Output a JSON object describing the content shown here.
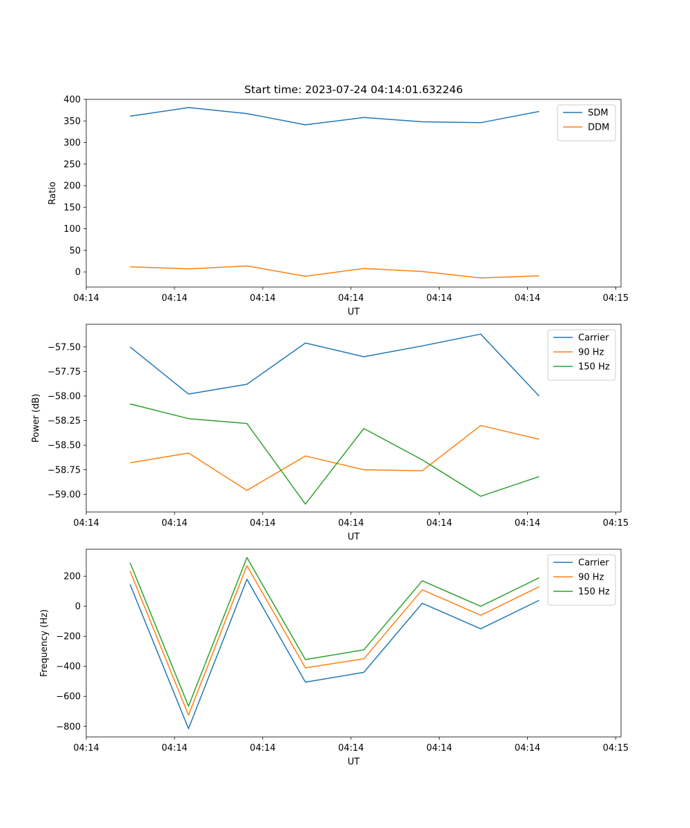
{
  "chart_data": [
    {
      "type": "line",
      "title": "Start time: 2023-07-24 04:14:01.632246",
      "xlabel": "UT",
      "ylabel": "Ratio",
      "x": [
        0,
        1,
        2,
        3,
        4,
        5,
        6,
        7
      ],
      "xlim": [
        -0.75,
        8.4
      ],
      "x_ticks": [
        -0.75,
        0.76,
        2.27,
        3.78,
        5.29,
        6.8,
        8.31
      ],
      "x_tick_labels": [
        "04:14",
        "04:14",
        "04:14",
        "04:14",
        "04:14",
        "04:14",
        "04:15"
      ],
      "ylim": [
        -35,
        400
      ],
      "y_ticks": [
        0,
        50,
        100,
        150,
        200,
        250,
        300,
        350,
        400
      ],
      "y_tick_labels": [
        "0",
        "50",
        "100",
        "150",
        "200",
        "250",
        "300",
        "350",
        "400"
      ],
      "legend_position": "top-right",
      "series": [
        {
          "name": "SDM",
          "color": "#1f77b4",
          "values": [
            361,
            381,
            367,
            341,
            358,
            348,
            346,
            372
          ]
        },
        {
          "name": "DDM",
          "color": "#ff7f0e",
          "values": [
            12,
            7,
            14,
            -10,
            8,
            1,
            -14,
            -9
          ]
        }
      ]
    },
    {
      "type": "line",
      "title": "",
      "xlabel": "UT",
      "ylabel": "Power (dB)",
      "x": [
        0,
        1,
        2,
        3,
        4,
        5,
        6,
        7
      ],
      "xlim": [
        -0.75,
        8.4
      ],
      "x_ticks": [
        -0.75,
        0.76,
        2.27,
        3.78,
        5.29,
        6.8,
        8.31
      ],
      "x_tick_labels": [
        "04:14",
        "04:14",
        "04:14",
        "04:14",
        "04:14",
        "04:14",
        "04:15"
      ],
      "ylim": [
        -59.18,
        -57.27
      ],
      "y_ticks": [
        -59.0,
        -58.75,
        -58.5,
        -58.25,
        -58.0,
        -57.75,
        -57.5
      ],
      "y_tick_labels": [
        "−59.00",
        "−58.75",
        "−58.50",
        "−58.25",
        "−58.00",
        "−57.75",
        "−57.50"
      ],
      "legend_position": "top-right",
      "series": [
        {
          "name": "Carrier",
          "color": "#1f77b4",
          "values": [
            -57.5,
            -57.98,
            -57.88,
            -57.46,
            -57.6,
            -57.49,
            -57.37,
            -58.0
          ]
        },
        {
          "name": "90 Hz",
          "color": "#ff7f0e",
          "values": [
            -58.68,
            -58.58,
            -58.96,
            -58.61,
            -58.75,
            -58.76,
            -58.3,
            -58.44
          ]
        },
        {
          "name": "150 Hz",
          "color": "#2ca02c",
          "values": [
            -58.08,
            -58.23,
            -58.28,
            -59.1,
            -58.33,
            -58.65,
            -59.02,
            -58.82
          ]
        }
      ]
    },
    {
      "type": "line",
      "title": "",
      "xlabel": "UT",
      "ylabel": "Frequency (Hz)",
      "x": [
        0,
        1,
        2,
        3,
        4,
        5,
        6,
        7
      ],
      "xlim": [
        -0.75,
        8.4
      ],
      "x_ticks": [
        -0.75,
        0.76,
        2.27,
        3.78,
        5.29,
        6.8,
        8.31
      ],
      "x_tick_labels": [
        "04:14",
        "04:14",
        "04:14",
        "04:14",
        "04:14",
        "04:14",
        "04:15"
      ],
      "ylim": [
        -870,
        380
      ],
      "y_ticks": [
        -800,
        -600,
        -400,
        -200,
        0,
        200
      ],
      "y_tick_labels": [
        "−800",
        "−600",
        "−400",
        "−200",
        "0",
        "200"
      ],
      "legend_position": "top-right",
      "series": [
        {
          "name": "Carrier",
          "color": "#1f77b4",
          "values": [
            145,
            -815,
            180,
            -505,
            -440,
            20,
            -150,
            40
          ]
        },
        {
          "name": "90 Hz",
          "color": "#ff7f0e",
          "values": [
            235,
            -725,
            270,
            -410,
            -350,
            110,
            -60,
            130
          ]
        },
        {
          "name": "150 Hz",
          "color": "#2ca02c",
          "values": [
            290,
            -665,
            325,
            -355,
            -290,
            170,
            0,
            190
          ]
        }
      ]
    }
  ]
}
